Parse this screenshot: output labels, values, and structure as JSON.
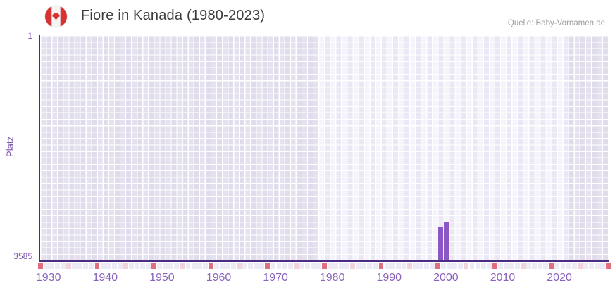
{
  "header": {
    "title": "Fiore in Kanada (1980-2023)",
    "source": "Quelle: Baby-Vornamen.de",
    "flag": "canada-flag-icon"
  },
  "chart_data": {
    "type": "bar",
    "title": "Fiore in Kanada (1980-2023)",
    "xlabel": "",
    "ylabel": "Platz",
    "y_axis": {
      "top_label": "1",
      "bottom_label": "3585",
      "min": 1,
      "max": 3585,
      "inverted": true
    },
    "x_range": [
      1929,
      2029
    ],
    "x_ticks": [
      1930,
      1940,
      1950,
      1960,
      1970,
      1980,
      1990,
      2000,
      2010,
      2020
    ],
    "highlight_year_range": [
      1978,
      2022
    ],
    "grid": true,
    "legend": false,
    "series": [
      {
        "name": "Platz",
        "points": [
          {
            "year": 1999,
            "rank": 3047
          },
          {
            "year": 2000,
            "rank": 2980
          }
        ]
      }
    ],
    "colors": {
      "bar": "#8a57c5",
      "axis": "#4a2c82",
      "tick_label": "#8a63bd",
      "major_tick_square": "#e06e7c",
      "minor_tick_square": "#f4d2d9",
      "year_tick_square": "#eceaf5",
      "plot_bg_dark": "#e5e1ef",
      "plot_bg_light": "#f6f4fb"
    }
  }
}
